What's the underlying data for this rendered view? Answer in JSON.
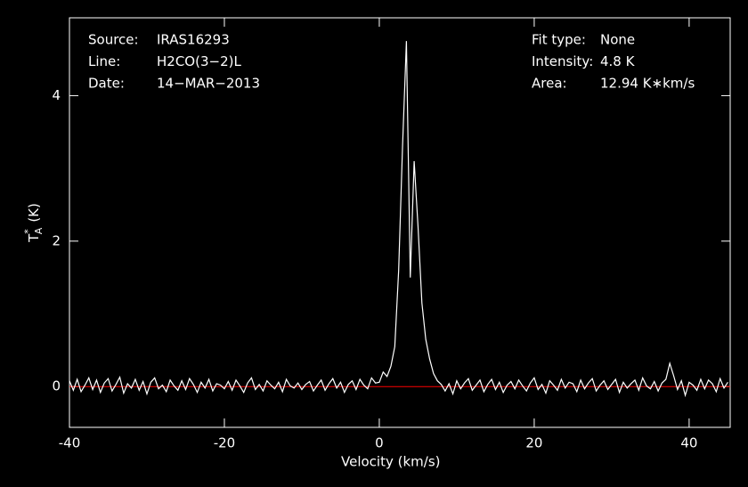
{
  "chart_data": {
    "type": "line",
    "info_left": [
      {
        "key": "Source:",
        "value": "IRAS16293"
      },
      {
        "key": "Line:",
        "value": "H2CO(3−2)L"
      },
      {
        "key": "Date:",
        "value": "14−MAR−2013"
      }
    ],
    "info_right": [
      {
        "key": "Fit type:",
        "value": "None"
      },
      {
        "key": "Intensity:",
        "value": "4.8 K"
      },
      {
        "key": "Area:",
        "value": "12.94 K∗km/s"
      }
    ],
    "xlabel": "Velocity (km/s)",
    "ylabel": {
      "symbol": "T",
      "sub": "A",
      "sup": "*",
      "unit": "(K)"
    },
    "xlim": [
      -40,
      45.3
    ],
    "ylim": [
      -0.56,
      5.07
    ],
    "xticks": [
      -40,
      -20,
      0,
      20,
      40
    ],
    "yticks": [
      0,
      2,
      4
    ],
    "baseline": {
      "value": 0,
      "color": "#ff0000"
    },
    "x": [
      -40,
      -39.5,
      -39,
      -38.5,
      -38,
      -37.5,
      -37,
      -36.5,
      -36,
      -35.5,
      -35,
      -34.5,
      -34,
      -33.5,
      -33,
      -32.5,
      -32,
      -31.5,
      -31,
      -30.5,
      -30,
      -29.5,
      -29,
      -28.5,
      -28,
      -27.5,
      -27,
      -26.5,
      -26,
      -25.5,
      -25,
      -24.5,
      -24,
      -23.5,
      -23,
      -22.5,
      -22,
      -21.5,
      -21,
      -20.5,
      -20,
      -19.5,
      -19,
      -18.5,
      -18,
      -17.5,
      -17,
      -16.5,
      -16,
      -15.5,
      -15,
      -14.5,
      -14,
      -13.5,
      -13,
      -12.5,
      -12,
      -11.5,
      -11,
      -10.5,
      -10,
      -9.5,
      -9,
      -8.5,
      -8,
      -7.5,
      -7,
      -6.5,
      -6,
      -5.5,
      -5,
      -4.5,
      -4,
      -3.5,
      -3,
      -2.5,
      -2,
      -1.5,
      -1,
      -0.5,
      0,
      0.5,
      1,
      1.5,
      2,
      2.5,
      3,
      3.5,
      4,
      4.5,
      5,
      5.5,
      6,
      6.5,
      7,
      7.5,
      8,
      8.5,
      9,
      9.5,
      10,
      10.5,
      11,
      11.5,
      12,
      12.5,
      13,
      13.5,
      14,
      14.5,
      15,
      15.5,
      16,
      16.5,
      17,
      17.5,
      18,
      18.5,
      19,
      19.5,
      20,
      20.5,
      21,
      21.5,
      22,
      22.5,
      23,
      23.5,
      24,
      24.5,
      25,
      25.5,
      26,
      26.5,
      27,
      27.5,
      28,
      28.5,
      29,
      29.5,
      30,
      30.5,
      31,
      31.5,
      32,
      32.5,
      33,
      33.5,
      34,
      34.5,
      35,
      35.5,
      36,
      36.5,
      37,
      37.5,
      38,
      38.5,
      39,
      39.5,
      40,
      40.5,
      41,
      41.5,
      42,
      42.5,
      43,
      43.5,
      44,
      44.5,
      45
    ],
    "series": [
      {
        "color": "#ffffff",
        "values": [
          0.08,
          -0.05,
          0.1,
          -0.07,
          0.02,
          0.12,
          -0.04,
          0.09,
          -0.08,
          0.05,
          0.11,
          -0.06,
          0.03,
          0.13,
          -0.09,
          0.04,
          -0.02,
          0.1,
          -0.05,
          0.07,
          -0.1,
          0.06,
          0.12,
          -0.03,
          0.02,
          -0.07,
          0.09,
          0.01,
          -0.05,
          0.08,
          -0.04,
          0.11,
          0.03,
          -0.08,
          0.06,
          -0.02,
          0.1,
          -0.06,
          0.04,
          0.02,
          -0.03,
          0.07,
          -0.05,
          0.09,
          0.01,
          -0.08,
          0.05,
          0.12,
          -0.04,
          0.03,
          -0.06,
          0.08,
          0.02,
          -0.03,
          0.06,
          -0.07,
          0.1,
          0.01,
          -0.02,
          0.05,
          -0.04,
          0.03,
          0.07,
          -0.06,
          0.02,
          0.09,
          -0.05,
          0.04,
          0.11,
          -0.02,
          0.06,
          -0.08,
          0.03,
          0.08,
          -0.04,
          0.1,
          0.02,
          -0.03,
          0.12,
          0.05,
          0.06,
          0.2,
          0.14,
          0.28,
          0.55,
          1.6,
          3.3,
          4.75,
          1.5,
          3.1,
          2.2,
          1.15,
          0.65,
          0.38,
          0.18,
          0.08,
          0.03,
          -0.06,
          0.04,
          -0.1,
          0.08,
          -0.03,
          0.05,
          0.11,
          -0.05,
          0.02,
          0.09,
          -0.07,
          0.03,
          0.1,
          -0.04,
          0.06,
          -0.08,
          0.02,
          0.07,
          -0.03,
          0.09,
          0.01,
          -0.06,
          0.05,
          0.12,
          -0.04,
          0.03,
          -0.09,
          0.08,
          0.02,
          -0.05,
          0.1,
          -0.02,
          0.06,
          0.04,
          -0.07,
          0.09,
          -0.03,
          0.05,
          0.11,
          -0.06,
          0.02,
          0.08,
          -0.04,
          0.03,
          0.1,
          -0.08,
          0.06,
          -0.02,
          0.04,
          0.09,
          -0.05,
          0.12,
          0.01,
          -0.03,
          0.07,
          -0.06,
          0.05,
          0.1,
          0.32,
          0.15,
          -0.04,
          0.08,
          -0.12,
          0.06,
          0.02,
          -0.05,
          0.1,
          -0.03,
          0.09,
          0.04,
          -0.07,
          0.11,
          -0.02,
          0.06
        ]
      }
    ]
  }
}
